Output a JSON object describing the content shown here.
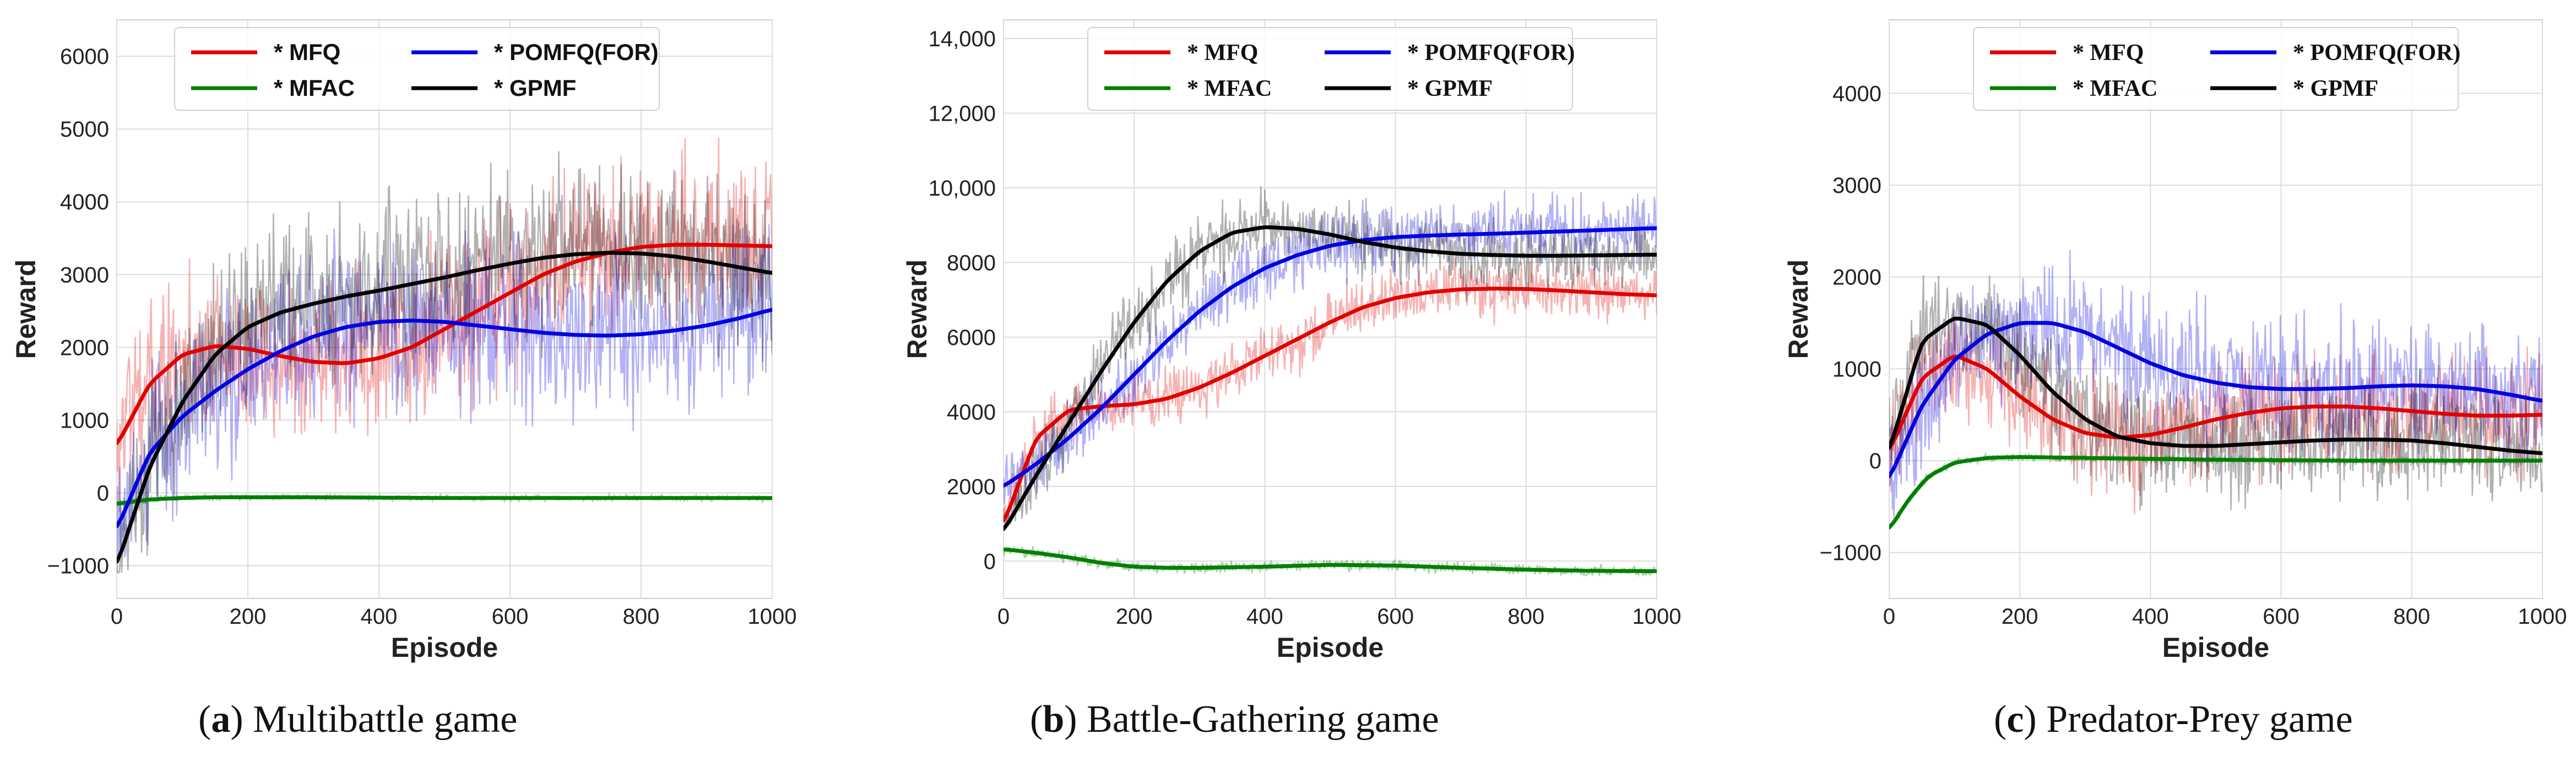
{
  "figure": {
    "panels": [
      {
        "caption_letter": "a",
        "caption_text": " Multibattle game",
        "chart_data": {
          "type": "line",
          "title": "",
          "xlabel": "Episode",
          "ylabel": "Reward",
          "xlim": [
            0,
            1000
          ],
          "ylim": [
            -1450,
            6500
          ],
          "xticks": [
            0,
            200,
            400,
            600,
            800,
            1000
          ],
          "xtick_labels": [
            "0",
            "200",
            "400",
            "600",
            "800",
            "1000"
          ],
          "yticks": [
            -1000,
            0,
            1000,
            2000,
            3000,
            4000,
            5000,
            6000
          ],
          "ytick_labels": [
            "−1000",
            "0",
            "1000",
            "2000",
            "3000",
            "4000",
            "5000",
            "6000"
          ],
          "grid": true,
          "legend_location": "top-center",
          "series": [
            {
              "name": "* MFQ",
              "color": "#e00000",
              "x": [
                0,
                50,
                100,
                150,
                200,
                250,
                300,
                350,
                400,
                450,
                500,
                550,
                600,
                650,
                700,
                750,
                800,
                850,
                900,
                950,
                1000
              ],
              "y": [
                650,
                1500,
                1900,
                2020,
                1980,
                1880,
                1800,
                1780,
                1850,
                2000,
                2250,
                2500,
                2750,
                3000,
                3180,
                3300,
                3380,
                3410,
                3410,
                3400,
                3390
              ],
              "noise_amp": 1600,
              "noise_low": -300,
              "noise_high": 5200,
              "noise_alpha": 0.3
            },
            {
              "name": "* MFAC",
              "color": "#007f00",
              "x": [
                0,
                50,
                100,
                150,
                200,
                300,
                400,
                500,
                600,
                700,
                800,
                900,
                1000
              ],
              "y": [
                -150,
                -90,
                -70,
                -60,
                -60,
                -60,
                -65,
                -70,
                -70,
                -70,
                -70,
                -70,
                -70
              ],
              "noise_amp": 60,
              "noise_low": -250,
              "noise_high": 200,
              "noise_alpha": 0.3
            },
            {
              "name": "* POMFQ(FOR)",
              "color": "#0000e0",
              "x": [
                0,
                50,
                100,
                150,
                200,
                250,
                300,
                350,
                400,
                450,
                500,
                550,
                600,
                650,
                700,
                750,
                800,
                850,
                900,
                950,
                1000
              ],
              "y": [
                -500,
                550,
                1050,
                1400,
                1700,
                1950,
                2150,
                2280,
                2350,
                2370,
                2350,
                2300,
                2250,
                2200,
                2170,
                2160,
                2180,
                2230,
                2300,
                2400,
                2520
              ],
              "noise_amp": 1700,
              "noise_low": -900,
              "noise_high": 5000,
              "noise_alpha": 0.3
            },
            {
              "name": "* GPMF",
              "color": "#000000",
              "x": [
                0,
                50,
                100,
                150,
                200,
                250,
                300,
                350,
                400,
                450,
                500,
                550,
                600,
                650,
                700,
                750,
                800,
                850,
                900,
                950,
                1000
              ],
              "y": [
                -1000,
                350,
                1250,
                1900,
                2280,
                2480,
                2600,
                2700,
                2780,
                2870,
                2960,
                3060,
                3150,
                3230,
                3280,
                3300,
                3290,
                3250,
                3180,
                3100,
                3020
              ],
              "noise_amp": 1700,
              "noise_low": -1100,
              "noise_high": 5000,
              "noise_alpha": 0.3
            }
          ]
        }
      },
      {
        "caption_letter": "b",
        "caption_text": " Battle-Gathering game",
        "chart_data": {
          "type": "line",
          "title": "",
          "xlabel": "Episode",
          "ylabel": "Reward",
          "xlim": [
            0,
            1000
          ],
          "ylim": [
            -1000,
            14500
          ],
          "xticks": [
            0,
            200,
            400,
            600,
            800,
            1000
          ],
          "xtick_labels": [
            "0",
            "200",
            "400",
            "600",
            "800",
            "1000"
          ],
          "yticks": [
            0,
            2000,
            4000,
            6000,
            8000,
            10000,
            12000,
            14000
          ],
          "ytick_labels": [
            "0",
            "2000",
            "4000",
            "6000",
            "8000",
            "10,000",
            "12,000",
            "14,000"
          ],
          "grid": true,
          "legend_location": "top-center",
          "series": [
            {
              "name": "* MFQ",
              "color": "#e00000",
              "x": [
                0,
                50,
                100,
                150,
                200,
                250,
                300,
                350,
                400,
                450,
                500,
                550,
                600,
                650,
                700,
                750,
                800,
                850,
                900,
                950,
                1000
              ],
              "y": [
                1000,
                3300,
                4050,
                4150,
                4200,
                4350,
                4650,
                5050,
                5500,
                5950,
                6400,
                6800,
                7050,
                7200,
                7280,
                7300,
                7290,
                7250,
                7200,
                7150,
                7120
              ],
              "noise_amp": 1100,
              "noise_low": 1000,
              "noise_high": 9000,
              "noise_alpha": 0.3
            },
            {
              "name": "* MFAC",
              "color": "#007f00",
              "x": [
                0,
                50,
                100,
                150,
                200,
                250,
                300,
                400,
                500,
                600,
                700,
                800,
                900,
                1000
              ],
              "y": [
                320,
                220,
                100,
                -50,
                -150,
                -180,
                -180,
                -150,
                -100,
                -120,
                -180,
                -230,
                -260,
                -270
              ],
              "noise_amp": 220,
              "noise_low": -400,
              "noise_high": 900,
              "noise_alpha": 0.35
            },
            {
              "name": "* POMFQ(FOR)",
              "color": "#0000e0",
              "x": [
                0,
                50,
                100,
                150,
                200,
                250,
                300,
                350,
                400,
                450,
                500,
                550,
                600,
                650,
                700,
                750,
                800,
                850,
                900,
                950,
                1000
              ],
              "y": [
                2000,
                2600,
                3300,
                4100,
                5000,
                5900,
                6700,
                7350,
                7850,
                8200,
                8450,
                8600,
                8680,
                8720,
                8750,
                8770,
                8800,
                8830,
                8860,
                8890,
                8920
              ],
              "noise_amp": 1300,
              "noise_low": 1500,
              "noise_high": 11900,
              "noise_alpha": 0.3
            },
            {
              "name": "* GPMF",
              "color": "#000000",
              "x": [
                0,
                50,
                100,
                150,
                200,
                250,
                300,
                350,
                400,
                450,
                500,
                550,
                600,
                650,
                700,
                750,
                800,
                850,
                900,
                950,
                1000
              ],
              "y": [
                800,
                2300,
                3700,
                5100,
                6400,
                7500,
                8300,
                8800,
                8950,
                8900,
                8750,
                8550,
                8400,
                8300,
                8230,
                8200,
                8180,
                8180,
                8190,
                8200,
                8210
              ],
              "noise_amp": 1400,
              "noise_low": 1000,
              "noise_high": 11500,
              "noise_alpha": 0.3
            }
          ]
        }
      },
      {
        "caption_letter": "c",
        "caption_text": " Predator-Prey game",
        "chart_data": {
          "type": "line",
          "title": "",
          "xlabel": "Episode",
          "ylabel": "Reward",
          "xlim": [
            0,
            1000
          ],
          "ylim": [
            -1500,
            4800
          ],
          "xticks": [
            0,
            200,
            400,
            600,
            800,
            1000
          ],
          "xtick_labels": [
            "0",
            "200",
            "400",
            "600",
            "800",
            "1000"
          ],
          "yticks": [
            -1000,
            0,
            1000,
            2000,
            3000,
            4000
          ],
          "ytick_labels": [
            "−1000",
            "0",
            "1000",
            "2000",
            "3000",
            "4000"
          ],
          "grid": true,
          "legend_location": "top-center",
          "series": [
            {
              "name": "* MFQ",
              "color": "#e00000",
              "x": [
                0,
                50,
                100,
                150,
                200,
                250,
                300,
                350,
                400,
                450,
                500,
                550,
                600,
                650,
                700,
                750,
                800,
                850,
                900,
                950,
                1000
              ],
              "y": [
                100,
                900,
                1150,
                1000,
                700,
                450,
                300,
                250,
                280,
                360,
                450,
                520,
                570,
                590,
                590,
                570,
                540,
                510,
                490,
                490,
                500
              ],
              "noise_amp": 900,
              "noise_low": -1500,
              "noise_high": 3000,
              "noise_alpha": 0.3
            },
            {
              "name": "* MFAC",
              "color": "#007f00",
              "x": [
                0,
                30,
                60,
                100,
                150,
                200,
                300,
                400,
                500,
                600,
                700,
                800,
                900,
                1000
              ],
              "y": [
                -750,
                -420,
                -170,
                -20,
                30,
                40,
                30,
                20,
                10,
                5,
                0,
                0,
                0,
                0
              ],
              "noise_amp": 60,
              "noise_low": -1500,
              "noise_high": 300,
              "noise_alpha": 0.35
            },
            {
              "name": "* POMFQ(FOR)",
              "color": "#0000e0",
              "x": [
                0,
                50,
                100,
                150,
                200,
                250,
                300,
                350,
                400,
                450,
                500,
                550,
                600,
                650,
                700,
                750,
                800,
                850,
                900,
                950,
                1000
              ],
              "y": [
                -200,
                600,
                1100,
                1380,
                1500,
                1500,
                1400,
                1230,
                1060,
                930,
                850,
                800,
                780,
                780,
                790,
                810,
                820,
                810,
                780,
                720,
                650
              ],
              "noise_amp": 1000,
              "noise_low": -1300,
              "noise_high": 3600,
              "noise_alpha": 0.3
            },
            {
              "name": "* GPMF",
              "color": "#000000",
              "x": [
                0,
                50,
                100,
                150,
                200,
                250,
                300,
                350,
                400,
                450,
                500,
                550,
                600,
                650,
                700,
                750,
                800,
                850,
                900,
                950,
                1000
              ],
              "y": [
                100,
                1300,
                1560,
                1480,
                1150,
                750,
                450,
                260,
                190,
                160,
                160,
                180,
                200,
                220,
                230,
                230,
                220,
                190,
                150,
                110,
                80
              ],
              "noise_amp": 900,
              "noise_low": -1500,
              "noise_high": 3400,
              "noise_alpha": 0.3
            }
          ]
        }
      }
    ]
  }
}
